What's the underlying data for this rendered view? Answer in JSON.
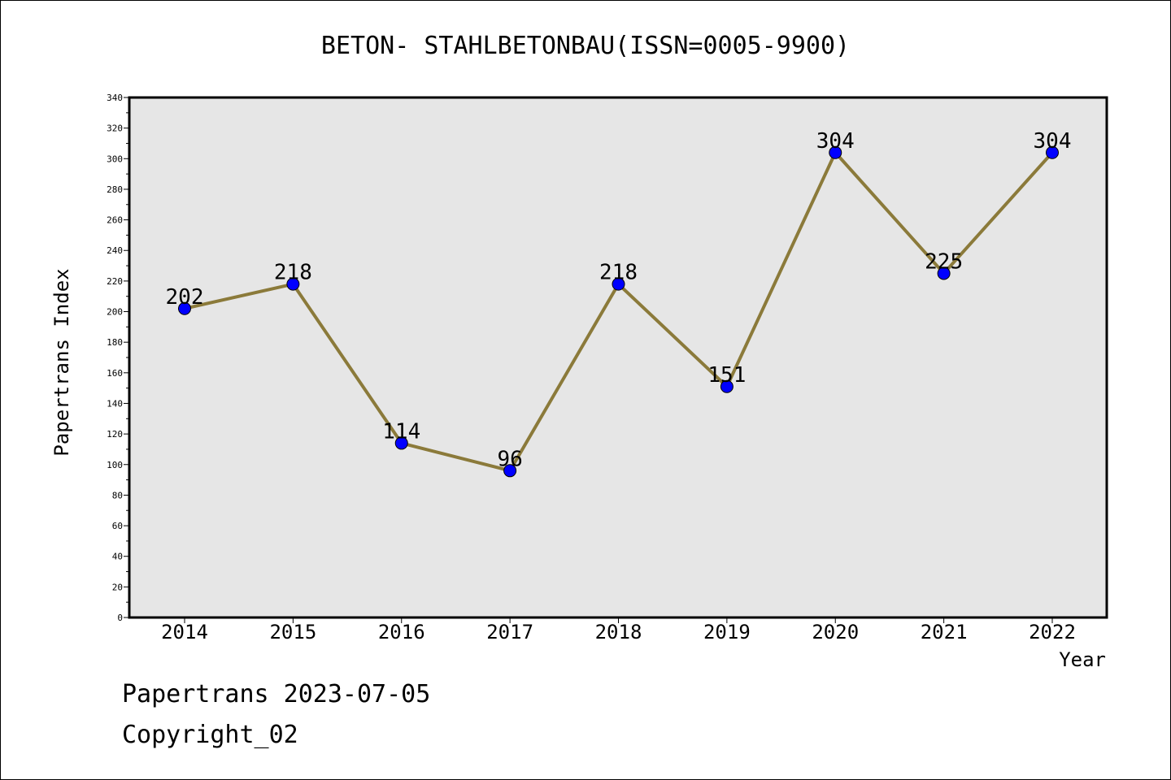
{
  "chart_data": {
    "type": "line",
    "title": "BETON- STAHLBETONBAU(ISSN=0005-9900)",
    "xlabel": "Year",
    "ylabel": "Papertrans Index",
    "categories": [
      "2014",
      "2015",
      "2016",
      "2017",
      "2018",
      "2019",
      "2020",
      "2021",
      "2022"
    ],
    "series": [
      {
        "values": [
          202,
          218,
          114,
          96,
          218,
          151,
          304,
          225,
          304
        ]
      }
    ],
    "data_labels": [
      "202",
      "218",
      "114",
      "96",
      "218",
      "151",
      "304",
      "225",
      "304"
    ],
    "ylim": [
      0,
      340
    ],
    "yticks": [
      "0",
      "20",
      "40",
      "60",
      "80",
      "100",
      "120",
      "140",
      "160",
      "180",
      "200",
      "220",
      "240",
      "260",
      "280",
      "300",
      "320",
      "340"
    ],
    "grid": false,
    "plot_background": "#e6e6e6",
    "line_color": "#8b7a3a",
    "marker_color": "#0000ff"
  },
  "footer": {
    "line1": "Papertrans 2023-07-05",
    "line2": "Copyright_02"
  }
}
